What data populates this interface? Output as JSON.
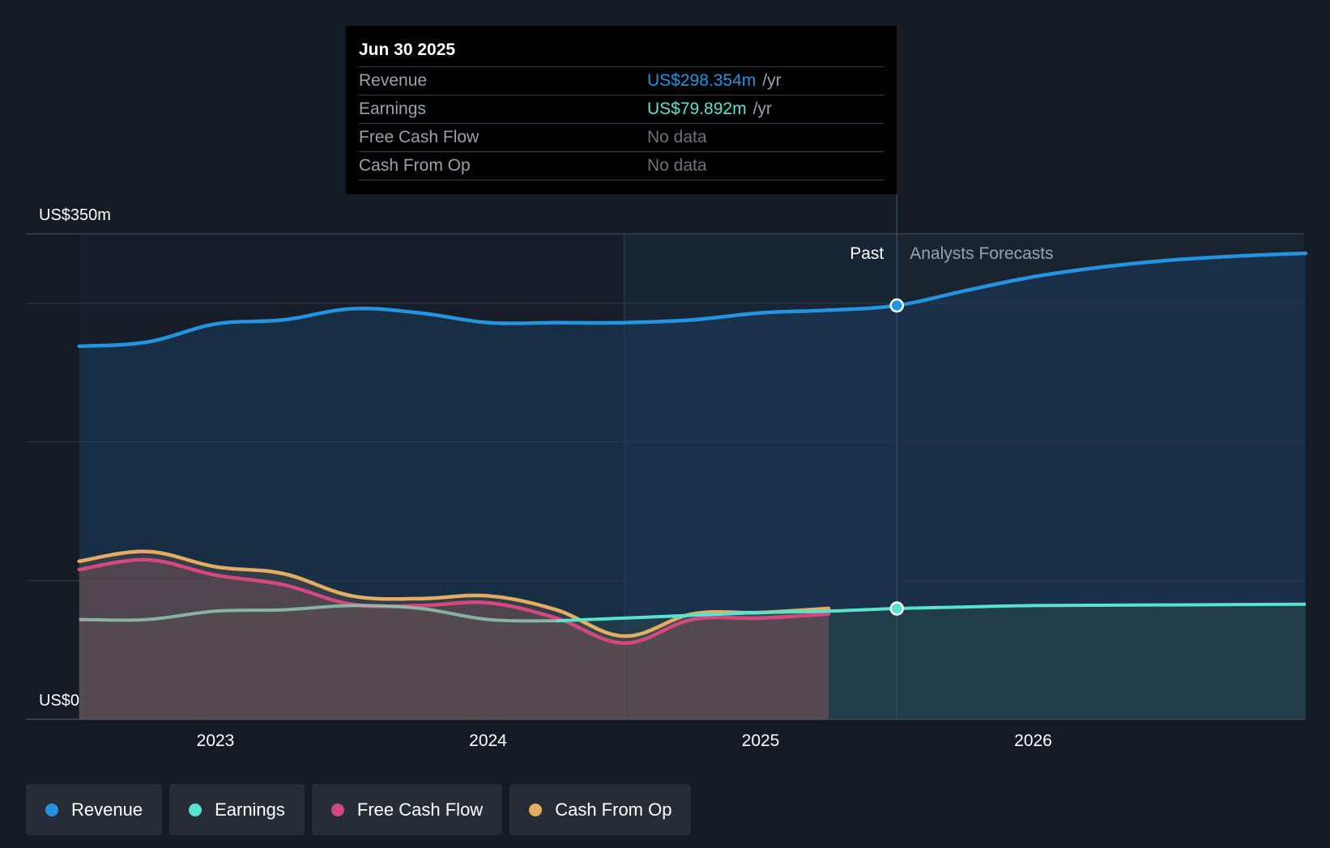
{
  "chart_data": {
    "type": "area",
    "ylim": [
      0,
      350
    ],
    "y_axis_labels": [
      "US$350m",
      "US$0"
    ],
    "x_ticks": [
      "2023",
      "2024",
      "2025",
      "2026"
    ],
    "past_label": "Past",
    "forecast_label": "Analysts Forecasts",
    "series": [
      {
        "name": "Revenue",
        "color": "#2394df",
        "x": [
          2022.5,
          2022.75,
          2023.0,
          2023.25,
          2023.5,
          2023.75,
          2024.0,
          2024.25,
          2024.5,
          2024.75,
          2025.0,
          2025.25,
          2025.5,
          2025.75,
          2026.0,
          2026.25,
          2026.5,
          2026.75,
          2027.0
        ],
        "values": [
          269,
          272,
          285,
          288,
          296,
          293,
          286,
          286,
          286,
          288,
          293,
          295,
          298.354,
          309,
          319,
          326,
          331,
          334,
          336
        ]
      },
      {
        "name": "Earnings",
        "color": "#58e3d0",
        "x": [
          2022.5,
          2022.75,
          2023.0,
          2023.25,
          2023.5,
          2023.75,
          2024.0,
          2024.25,
          2024.5,
          2024.75,
          2025.0,
          2025.25,
          2025.5,
          2025.75,
          2026.0,
          2026.5,
          2027.0
        ],
        "values": [
          72,
          72,
          78,
          79,
          82,
          80,
          72,
          71,
          73,
          75,
          77,
          78,
          79.892,
          81,
          82,
          82.5,
          83
        ]
      },
      {
        "name": "Free Cash Flow",
        "color": "#d3497f",
        "x": [
          2022.5,
          2022.75,
          2023.0,
          2023.25,
          2023.5,
          2023.75,
          2024.0,
          2024.25,
          2024.5,
          2024.75,
          2025.0,
          2025.25
        ],
        "values": [
          108,
          115,
          104,
          97,
          83,
          82,
          84,
          73,
          55,
          72,
          73,
          76
        ]
      },
      {
        "name": "Cash From Op",
        "color": "#e3ad63",
        "x": [
          2022.5,
          2022.75,
          2023.0,
          2023.25,
          2023.5,
          2023.75,
          2024.0,
          2024.25,
          2024.5,
          2024.75,
          2025.0,
          2025.25
        ],
        "values": [
          114,
          121,
          110,
          105,
          89,
          87,
          89,
          79,
          60,
          76,
          77,
          80
        ]
      }
    ],
    "marker_x": 2025.5,
    "past_end_x": 2025.5
  },
  "tooltip": {
    "date": "Jun 30 2025",
    "rows": [
      {
        "label": "Revenue",
        "value": "US$298.354m",
        "unit": "/yr",
        "color": "#2394df"
      },
      {
        "label": "Earnings",
        "value": "US$79.892m",
        "unit": "/yr",
        "color": "#58e3d0"
      },
      {
        "label": "Free Cash Flow",
        "value": "No data"
      },
      {
        "label": "Cash From Op",
        "value": "No data"
      }
    ]
  },
  "legend": [
    {
      "label": "Revenue",
      "color": "#2394df"
    },
    {
      "label": "Earnings",
      "color": "#58e3d0"
    },
    {
      "label": "Free Cash Flow",
      "color": "#d3497f"
    },
    {
      "label": "Cash From Op",
      "color": "#e3ad63"
    }
  ]
}
